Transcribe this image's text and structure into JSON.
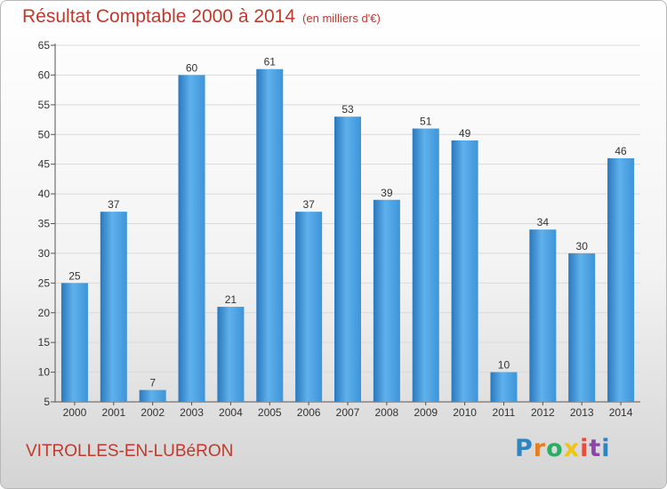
{
  "header": {
    "title": "Résultat Comptable 2000 à 2014",
    "unit": "(en milliers d'€)"
  },
  "footer": {
    "city": "VITROLLES-EN-LUBéRON",
    "logo_letters": [
      "P",
      "r",
      "o",
      "x",
      "i",
      "t",
      "i"
    ]
  },
  "colors": {
    "bar": "#3d94d8",
    "bar_light": "#5fb1ec",
    "bar_dark": "#2a78bd",
    "title": "#c0392b"
  },
  "chart_data": {
    "type": "bar",
    "title": "Résultat Comptable 2000 à 2014",
    "subtitle": "(en milliers d'€)",
    "xlabel": "",
    "ylabel": "",
    "categories": [
      "2000",
      "2001",
      "2002",
      "2003",
      "2004",
      "2005",
      "2006",
      "2007",
      "2008",
      "2009",
      "2010",
      "2011",
      "2012",
      "2013",
      "2014"
    ],
    "values": [
      25,
      37,
      7,
      60,
      21,
      61,
      37,
      53,
      39,
      51,
      49,
      10,
      34,
      30,
      46
    ],
    "ylim": [
      5,
      65
    ],
    "yticks": [
      5,
      10,
      15,
      20,
      25,
      30,
      35,
      40,
      45,
      50,
      55,
      60,
      65
    ],
    "grid": true,
    "legend": "none"
  }
}
